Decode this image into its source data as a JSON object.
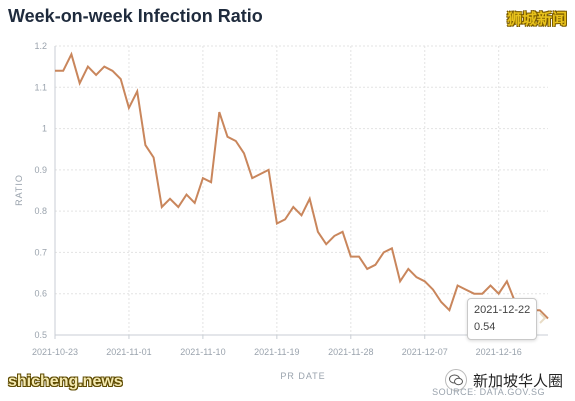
{
  "header": {
    "title": "Week-on-week Infection Ratio",
    "watermark_top": "狮城新闻"
  },
  "footer": {
    "watermark_site": "shicheng.news",
    "wechat_account": "新加坡华人圈",
    "source": "SOURCE: DATA.GOV.SG"
  },
  "tooltip": {
    "date": "2021-12-22",
    "value": "0.54"
  },
  "colors": {
    "line": "#c9865c",
    "grid": "#e3e3e3",
    "axis_text": "#9aa3ad"
  },
  "chart_data": {
    "type": "line",
    "title": "Week-on-week Infection Ratio",
    "xlabel": "PR DATE",
    "ylabel": "RATIO",
    "x_start": "2021-10-23",
    "x_end": "2021-12-22",
    "x_ticks": [
      "2021-10-23",
      "2021-11-01",
      "2021-11-10",
      "2021-11-19",
      "2021-11-28",
      "2021-12-07",
      "2021-12-16"
    ],
    "y_ticks": [
      0.5,
      0.6,
      0.7,
      0.8,
      0.9,
      1,
      1.1,
      1.2
    ],
    "ylim": [
      0.5,
      1.2
    ],
    "grid": true,
    "series": [
      {
        "values": [
          1.14,
          1.14,
          1.18,
          1.11,
          1.15,
          1.13,
          1.15,
          1.14,
          1.12,
          1.05,
          1.09,
          0.96,
          0.93,
          0.81,
          0.83,
          0.81,
          0.84,
          0.82,
          0.88,
          0.87,
          1.04,
          0.98,
          0.97,
          0.94,
          0.88,
          0.89,
          0.9,
          0.77,
          0.78,
          0.81,
          0.79,
          0.83,
          0.75,
          0.72,
          0.74,
          0.75,
          0.69,
          0.69,
          0.66,
          0.67,
          0.7,
          0.71,
          0.63,
          0.66,
          0.64,
          0.63,
          0.61,
          0.58,
          0.56,
          0.62,
          0.61,
          0.6,
          0.6,
          0.62,
          0.6,
          0.63,
          0.58,
          0.57,
          0.56,
          0.56,
          0.54
        ]
      }
    ]
  }
}
